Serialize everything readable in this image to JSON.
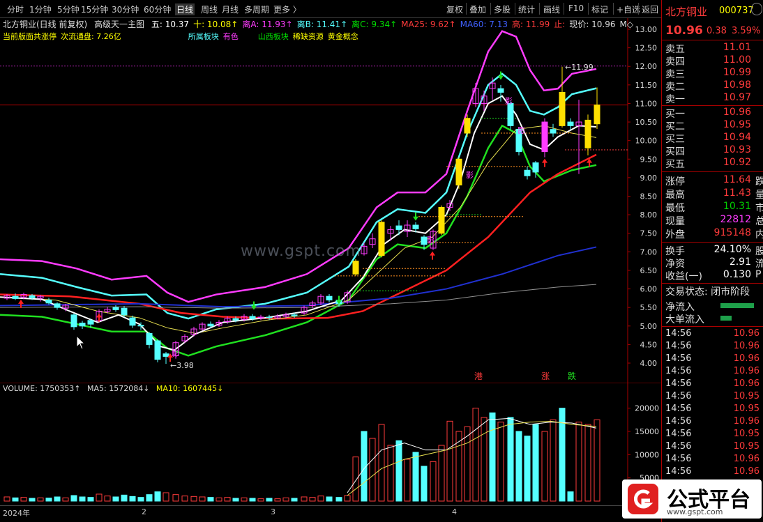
{
  "toolbar": {
    "items": [
      "分时",
      "1分钟",
      "5分钟",
      "15分钟",
      "30分钟",
      "60分钟",
      "日线",
      "周线",
      "月线",
      "多周期",
      "更多 〉"
    ],
    "right": [
      "复权",
      "叠加",
      "多股",
      "统计",
      "画线",
      "F10",
      "标记",
      "+自选",
      "返回"
    ]
  },
  "chart": {
    "title": "北方铜业(日线 前复权)",
    "formula": "高级天一主图",
    "params": [
      {
        "t": "五: 10.37",
        "c": "#ffffff"
      },
      {
        "t": "十: 10.08↑",
        "c": "#ffff00"
      },
      {
        "t": "离A: 11.93↑",
        "c": "#ff3cff"
      },
      {
        "t": "离B: 11.41↑",
        "c": "#55ffff"
      },
      {
        "t": "离C: 9.34↑",
        "c": "#00e000"
      },
      {
        "t": "MA25: 9.62↑",
        "c": "#ff3b3b"
      },
      {
        "t": "MA60: 7.13",
        "c": "#4060ff"
      },
      {
        "t": "高: 11.99",
        "c": "#ff3b3b"
      },
      {
        "t": "止:",
        "c": "#ff3b3b"
      },
      {
        "t": "现价: 10.96",
        "c": "#dddddd"
      },
      {
        "t": "M◇",
        "c": "#dddddd"
      }
    ],
    "row2": [
      {
        "t": "当前版面共涨停",
        "c": "#ffff00"
      },
      {
        "t": "次流通盘: 7.26亿",
        "c": "#ffff00"
      },
      {
        "t": "所属板块",
        "c": "#55ffff"
      },
      {
        "t": "有色",
        "c": "#ff3cff"
      },
      {
        "t": "山西板块",
        "c": "#00e000"
      },
      {
        "t": "稀缺资源",
        "c": "#ffff00"
      },
      {
        "t": "黄金概念",
        "c": "#ffff00"
      }
    ],
    "price_axis": [
      "13.00",
      "12.50",
      "12.00",
      "11.50",
      "11.00",
      "10.50",
      "10.00",
      "9.50",
      "9.00",
      "8.50",
      "8.00",
      "7.50",
      "7.00",
      "6.50",
      "6.00",
      "5.50",
      "5.00",
      "4.50",
      "4.00"
    ],
    "annotations": {
      "high": "11.99",
      "low": "3.98",
      "shadow": "影",
      "signal1": "港",
      "signal2": "涨",
      "signal3": "跌"
    },
    "watermark": "www.gspt.com"
  },
  "volume": {
    "label": "VOLUME: 1750353↑",
    "ma5": "MA5: 1572084↓",
    "ma10": "MA10: 1607445↓",
    "axis": [
      "20000",
      "15000",
      "10000",
      "5000"
    ]
  },
  "dates": [
    "2024年",
    "2",
    "3",
    "4"
  ],
  "side": {
    "name": "北方铜业",
    "code": "000737",
    "price": "10.96",
    "change": "0.38",
    "pct": "3.59%",
    "asks": [
      {
        "l": "卖五",
        "v": "11.01"
      },
      {
        "l": "卖四",
        "v": "11.00"
      },
      {
        "l": "卖三",
        "v": "10.99"
      },
      {
        "l": "卖二",
        "v": "10.98"
      },
      {
        "l": "卖一",
        "v": "10.97"
      }
    ],
    "bids": [
      {
        "l": "买一",
        "v": "10.96"
      },
      {
        "l": "买二",
        "v": "10.95"
      },
      {
        "l": "买三",
        "v": "10.94"
      },
      {
        "l": "买四",
        "v": "10.93"
      },
      {
        "l": "买五",
        "v": "10.92"
      }
    ],
    "stats": [
      {
        "l": "涨停",
        "v": "11.64",
        "c": "red",
        "x": "跌"
      },
      {
        "l": "最高",
        "v": "11.43",
        "c": "red",
        "x": "量"
      },
      {
        "l": "最低",
        "v": "10.31",
        "c": "grn",
        "x": "市"
      },
      {
        "l": "现量",
        "v": "22812",
        "c": "mag",
        "x": "总"
      },
      {
        "l": "外盘",
        "v": "915148",
        "c": "red",
        "x": "内"
      }
    ],
    "stats2": [
      {
        "l": "换手",
        "v": "24.10%",
        "x": "股"
      },
      {
        "l": "净资",
        "v": "2.91",
        "x": "流"
      },
      {
        "l": "收益(一)",
        "v": "0.130",
        "x": "P"
      }
    ],
    "trade_state": "交易状态: 闭市阶段",
    "inflow": "净流入",
    "big_inflow": "大单流入",
    "ticks": [
      {
        "t": "14:56",
        "v": "10.96"
      },
      {
        "t": "14:56",
        "v": "10.96"
      },
      {
        "t": "14:56",
        "v": "10.96"
      },
      {
        "t": "14:56",
        "v": "10.96"
      },
      {
        "t": "14:56",
        "v": "10.96"
      },
      {
        "t": "14:56",
        "v": "10.95"
      },
      {
        "t": "14:56",
        "v": "10.95"
      },
      {
        "t": "14:56",
        "v": "10.96"
      },
      {
        "t": "14:56",
        "v": "10.95"
      },
      {
        "t": "14:56",
        "v": "10.95"
      },
      {
        "t": "14:56",
        "v": "10.96"
      },
      {
        "t": "14:56",
        "v": "10.96"
      }
    ]
  },
  "logo": {
    "text": "公式平台",
    "url": "www.gspt.com"
  }
}
